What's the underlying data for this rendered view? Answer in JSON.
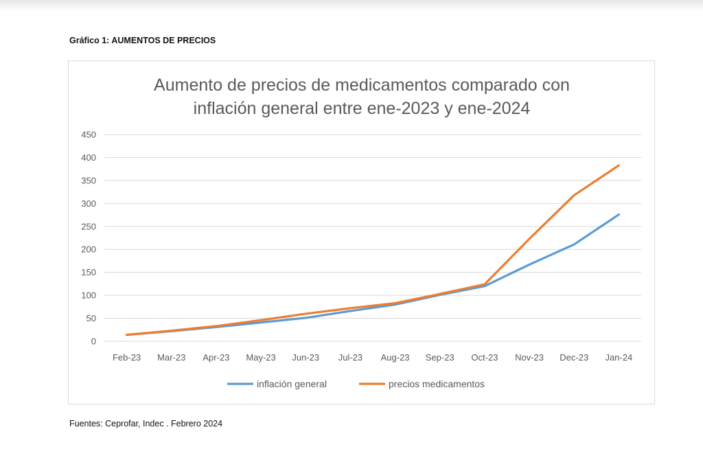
{
  "document": {
    "heading": "Gráfico 1: AUMENTOS DE PRECIOS",
    "source": "Fuentes: Ceprofar, Indec . Febrero 2024"
  },
  "colors": {
    "inflation": "#5b9bd5",
    "medicines": "#ed7d31",
    "grid": "#d9d9d9",
    "text": "#595959"
  },
  "chart_data": {
    "type": "line",
    "title_line1": "Aumento de precios de medicamentos comparado con",
    "title_line2": "inflación general entre ene-2023 y ene-2024",
    "xlabel": "",
    "ylabel": "",
    "ylim": [
      0,
      450
    ],
    "yticks": [
      0,
      50,
      100,
      150,
      200,
      250,
      300,
      350,
      400,
      450
    ],
    "grid": true,
    "legend_position": "bottom",
    "categories": [
      "Feb-23",
      "Mar-23",
      "Apr-23",
      "May-23",
      "Jun-23",
      "Jul-23",
      "Aug-23",
      "Sep-23",
      "Oct-23",
      "Nov-23",
      "Dec-23",
      "Jan-24"
    ],
    "series": [
      {
        "name": "inflación general",
        "color_key": "inflation",
        "values": [
          14,
          22,
          31,
          41,
          51,
          66,
          80,
          101,
          120,
          167,
          211,
          276
        ]
      },
      {
        "name": "precios medicamentos",
        "color_key": "medicines",
        "values": [
          14,
          23,
          33,
          46,
          60,
          72,
          83,
          103,
          124,
          223,
          318,
          383
        ]
      }
    ]
  }
}
